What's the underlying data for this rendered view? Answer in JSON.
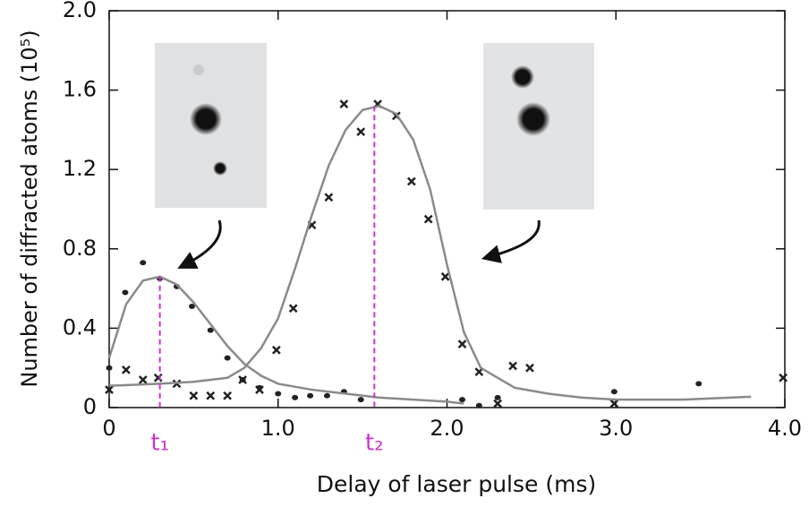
{
  "chart_data": {
    "type": "scatter",
    "x_label": "Delay of laser pulse (ms)",
    "y_label": "Number of diffracted atoms (10⁵)",
    "xlim": [
      0,
      4
    ],
    "ylim": [
      0,
      2
    ],
    "xticks": [
      {
        "value": 0,
        "label": "0"
      },
      {
        "value": 1,
        "label": "1.0"
      },
      {
        "value": 2,
        "label": "2.0"
      },
      {
        "value": 3,
        "label": "3.0"
      },
      {
        "value": 4,
        "label": "4.0"
      }
    ],
    "yticks": [
      0,
      0.4,
      0.8,
      1.2,
      1.6,
      {
        "value": 2,
        "label": "2.0"
      }
    ],
    "series": [
      {
        "mode": "markers",
        "marker": "dot",
        "color": "#222222",
        "x": [
          0,
          0.095,
          0.2,
          0.3,
          0.4,
          0.49,
          0.6,
          0.7,
          0.79,
          0.89,
          1.0,
          1.1,
          1.19,
          1.29,
          1.39,
          1.49,
          2.09,
          2.19,
          2.3,
          2.99,
          3.49
        ],
        "values": [
          0.2,
          0.58,
          0.73,
          0.65,
          0.61,
          0.51,
          0.39,
          0.25,
          0.14,
          0.1,
          0.07,
          0.05,
          0.06,
          0.06,
          0.08,
          0.04,
          0.04,
          0.01,
          0.05,
          0.08,
          0.12
        ]
      },
      {
        "mode": "markers",
        "marker": "cross",
        "color": "#222222",
        "x": [
          0,
          0.1,
          0.2,
          0.29,
          0.4,
          0.5,
          0.6,
          0.7,
          0.79,
          0.89,
          0.99,
          1.09,
          1.2,
          1.3,
          1.39,
          1.49,
          1.59,
          1.7,
          1.79,
          1.89,
          1.99,
          2.09,
          2.19,
          2.3,
          2.39,
          2.49,
          2.99,
          3.99
        ],
        "values": [
          0.09,
          0.19,
          0.14,
          0.15,
          0.12,
          0.06,
          0.06,
          0.06,
          0.14,
          0.09,
          0.29,
          0.5,
          0.92,
          1.06,
          1.53,
          1.39,
          1.53,
          1.47,
          1.14,
          0.95,
          0.66,
          0.32,
          0.18,
          0.02,
          0.21,
          0.2,
          0.02,
          0.15
        ]
      },
      {
        "mode": "line",
        "color": "#8a8a8a",
        "x": [
          0,
          0.1,
          0.2,
          0.3,
          0.4,
          0.5,
          0.6,
          0.7,
          0.8,
          0.9,
          1.0,
          1.2,
          1.4,
          1.6,
          1.8,
          2.0,
          2.1
        ],
        "values": [
          0.25,
          0.52,
          0.64,
          0.66,
          0.62,
          0.53,
          0.42,
          0.31,
          0.22,
          0.16,
          0.12,
          0.09,
          0.07,
          0.05,
          0.04,
          0.03,
          0.02
        ]
      },
      {
        "mode": "line",
        "color": "#8a8a8a",
        "x": [
          0,
          0.3,
          0.5,
          0.7,
          0.8,
          0.9,
          1.0,
          1.1,
          1.2,
          1.3,
          1.4,
          1.5,
          1.6,
          1.7,
          1.8,
          1.9,
          2.0,
          2.1,
          2.2,
          2.4,
          2.6,
          2.8,
          3.0,
          3.4,
          3.8
        ],
        "values": [
          0.11,
          0.12,
          0.13,
          0.15,
          0.2,
          0.3,
          0.45,
          0.7,
          0.97,
          1.22,
          1.4,
          1.5,
          1.52,
          1.48,
          1.35,
          1.1,
          0.72,
          0.38,
          0.2,
          0.1,
          0.07,
          0.05,
          0.04,
          0.04,
          0.055
        ]
      }
    ],
    "annotations": [
      {
        "text": "t₁",
        "x": 0.3,
        "y": 0.66,
        "color": "#cc33cc"
      },
      {
        "text": "t₂",
        "x": 1.57,
        "y": 1.52,
        "color": "#cc33cc"
      }
    ]
  }
}
